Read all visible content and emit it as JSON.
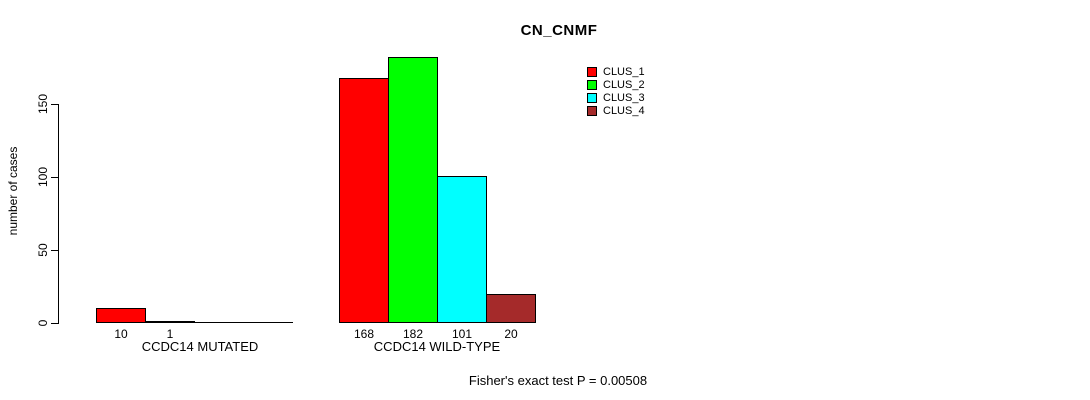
{
  "chart_data": {
    "type": "bar",
    "title": "CN_CNMF",
    "ylabel": "number of cases",
    "xlabel": "",
    "categories": [
      "CCDC14 MUTATED",
      "CCDC14 WILD-TYPE"
    ],
    "series": [
      {
        "name": "CLUS_1",
        "color": "#ff0000",
        "values": [
          10,
          168
        ]
      },
      {
        "name": "CLUS_2",
        "color": "#00ff00",
        "values": [
          1,
          182
        ]
      },
      {
        "name": "CLUS_3",
        "color": "#00ffff",
        "values": [
          0,
          101
        ]
      },
      {
        "name": "CLUS_4",
        "color": "#a52a2a",
        "values": [
          0,
          20
        ]
      }
    ],
    "yticks": [
      0,
      50,
      100,
      150
    ],
    "ylim": [
      0,
      182
    ],
    "grid": false,
    "bar_borders": "#000000",
    "legend_position": "top-right",
    "legend": [
      "CLUS_1",
      "CLUS_2",
      "CLUS_3",
      "CLUS_4"
    ],
    "value_labels_under_bars": true,
    "zero_value_labels_hidden": true,
    "annotation": "Fisher's exact test P = 0.00508"
  }
}
